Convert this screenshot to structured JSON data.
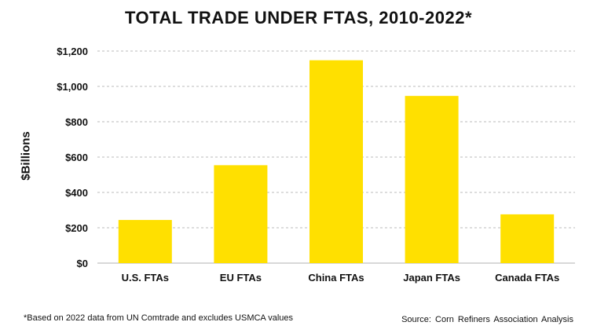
{
  "chart_data": {
    "type": "bar",
    "title": "TOTAL TRADE UNDER FTAS, 2010-2022*",
    "ylabel": "$Billions",
    "xlabel": "",
    "categories": [
      "U.S. FTAs",
      "EU FTAs",
      "China FTAs",
      "Japan FTAs",
      "Canada FTAs"
    ],
    "values": [
      244,
      554,
      1148,
      946,
      276
    ],
    "ylim": [
      0,
      1200
    ],
    "yticks": [
      0,
      200,
      400,
      600,
      800,
      1000,
      1200
    ],
    "ytick_labels": [
      "$0",
      "$200",
      "$400",
      "$600",
      "$800",
      "$1,000",
      "$1,200"
    ],
    "grid": true,
    "bar_color": "#FFE000"
  },
  "footnote": "*Based on 2022 data from UN Comtrade and excludes USMCA values",
  "source": "Source: Corn Refiners Association Analysis"
}
